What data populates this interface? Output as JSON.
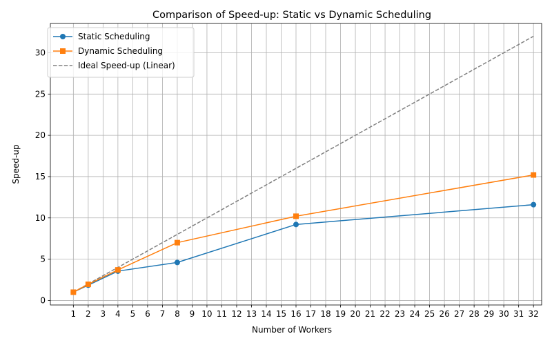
{
  "chart_data": {
    "type": "line",
    "title": "Comparison of Speed-up: Static vs Dynamic Scheduling",
    "xlabel": "Number of Workers",
    "ylabel": "Speed-up",
    "xlim": [
      -0.55,
      32.55
    ],
    "ylim": [
      -0.55,
      33.55
    ],
    "x_ticks": [
      1,
      2,
      3,
      4,
      5,
      6,
      7,
      8,
      9,
      10,
      11,
      12,
      13,
      14,
      15,
      16,
      17,
      18,
      19,
      20,
      21,
      22,
      23,
      24,
      25,
      26,
      27,
      28,
      29,
      30,
      31,
      32
    ],
    "y_ticks": [
      0,
      5,
      10,
      15,
      20,
      25,
      30
    ],
    "grid": true,
    "legend_position": "upper-left",
    "series": [
      {
        "name": "Static Scheduling",
        "color": "#1f77b4",
        "marker": "circle",
        "line_style": "solid",
        "x": [
          1,
          2,
          4,
          8,
          16,
          32
        ],
        "values": [
          1.0,
          1.85,
          3.55,
          4.6,
          9.2,
          11.6
        ]
      },
      {
        "name": "Dynamic Scheduling",
        "color": "#ff7f0e",
        "marker": "square",
        "line_style": "solid",
        "x": [
          1,
          2,
          4,
          8,
          16,
          32
        ],
        "values": [
          1.0,
          1.95,
          3.7,
          7.0,
          10.2,
          15.2
        ]
      },
      {
        "name": "Ideal Speed-up (Linear)",
        "color": "#808080",
        "marker": "none",
        "line_style": "dashed",
        "x": [
          1,
          2,
          4,
          8,
          16,
          32
        ],
        "values": [
          1,
          2,
          4,
          8,
          16,
          32
        ]
      }
    ]
  }
}
